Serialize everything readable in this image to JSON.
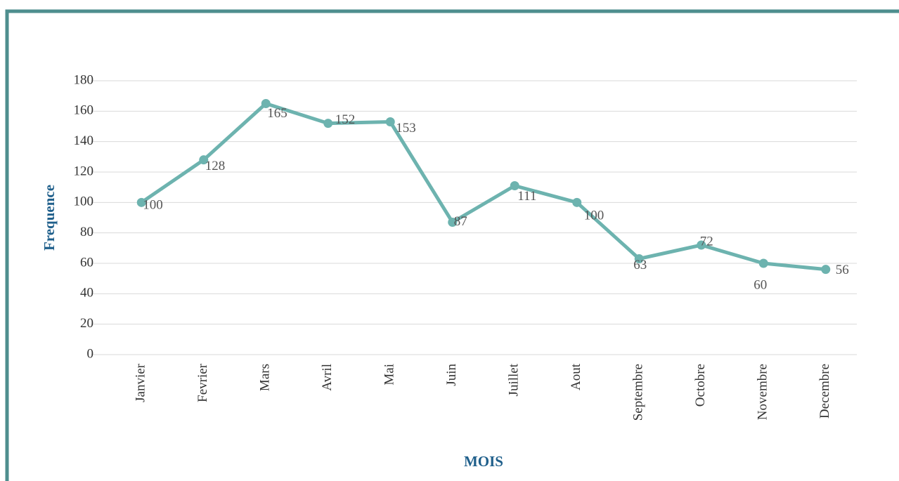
{
  "chart_data": {
    "type": "line",
    "x_label": "MOIS",
    "y_label": "Frequence",
    "categories": [
      "Janvier",
      "Fevrier",
      "Mars",
      "Avril",
      "Mai",
      "Juin",
      "Juillet",
      "Aout",
      "Septembre",
      "Octobre",
      "Novembre",
      "Decembre"
    ],
    "series": [
      {
        "name": "Frequence",
        "color": "#6db3af",
        "values": [
          100,
          128,
          165,
          152,
          153,
          87,
          111,
          100,
          63,
          72,
          60,
          56
        ]
      }
    ],
    "ylim": [
      0,
      180
    ],
    "yticks": [
      0,
      20,
      40,
      60,
      80,
      100,
      120,
      140,
      160,
      180
    ],
    "grid": true
  }
}
